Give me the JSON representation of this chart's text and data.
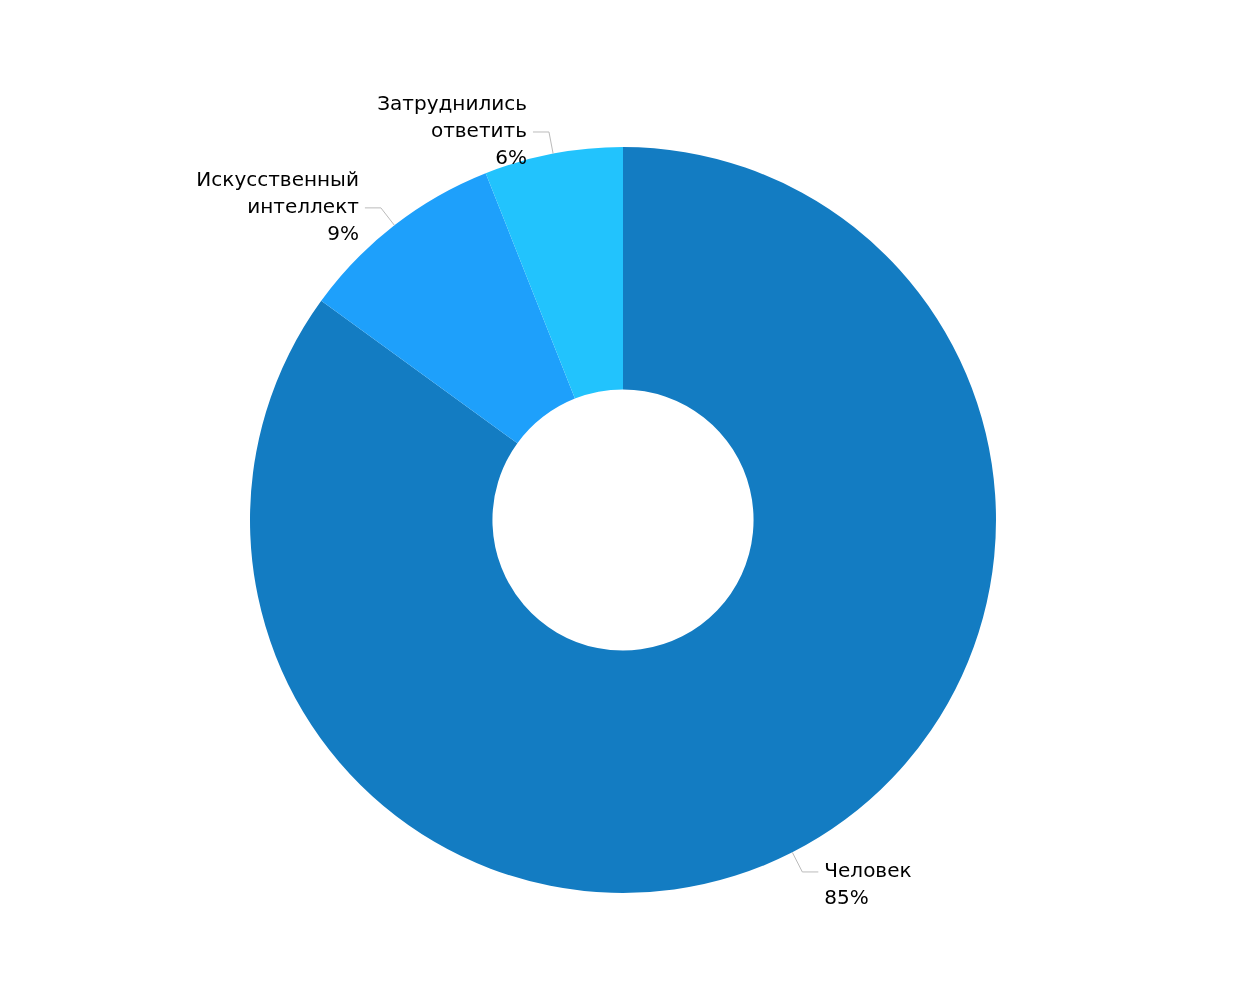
{
  "chart_data": {
    "type": "donut",
    "categories": [
      "Человек",
      "Искусственный интеллект",
      "Затруднились ответить"
    ],
    "values": [
      85,
      9,
      6
    ],
    "colors": [
      "#137cc2",
      "#1ea0fb",
      "#22c3fd"
    ],
    "value_labels": [
      "85%",
      "9%",
      "6%"
    ],
    "legend": false
  }
}
